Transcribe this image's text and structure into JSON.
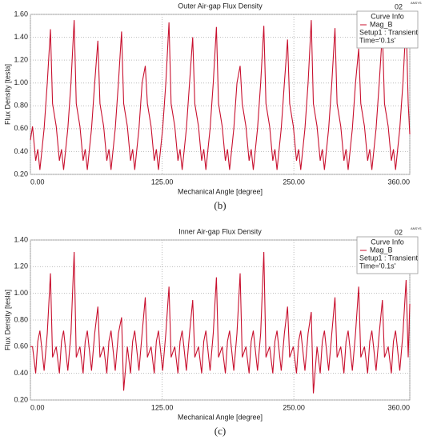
{
  "chart_data": [
    {
      "type": "line",
      "title": "Outer Air-gap Flux Density",
      "xlabel": "Mechanical Angle [degree]",
      "ylabel": "Flux Density [tesla]",
      "caption": "(b)",
      "corner": "02",
      "logo": "ANSYS",
      "legend": {
        "title": "Curve Info",
        "lines": [
          "Setup1 : Transient",
          "Time='0.1s'"
        ]
      },
      "xlim": [
        0,
        360
      ],
      "ylim": [
        0.2,
        1.6
      ],
      "grid": true,
      "xticks": [
        {
          "value": 0,
          "label": "0.00"
        },
        {
          "value": 125,
          "label": "125.00"
        },
        {
          "value": 250,
          "label": "250.00"
        },
        {
          "value": 360,
          "label": "360.00"
        }
      ],
      "yticks": [
        {
          "value": 0.2,
          "label": "0.20"
        },
        {
          "value": 0.4,
          "label": "0.40"
        },
        {
          "value": 0.6,
          "label": "0.60"
        },
        {
          "value": 0.8,
          "label": "0.80"
        },
        {
          "value": 1.0,
          "label": "1.00"
        },
        {
          "value": 1.2,
          "label": "1.20"
        },
        {
          "value": 1.4,
          "label": "1.40"
        },
        {
          "value": 1.6,
          "label": "1.60"
        }
      ],
      "x": [
        0,
        2,
        5,
        7,
        9,
        13,
        16,
        19,
        21,
        24.5,
        27.5,
        29.5,
        31.5,
        35.5,
        38.5,
        41.5,
        43.5,
        47,
        50,
        52,
        54,
        58,
        61,
        64,
        66,
        69.5,
        72.5,
        74.5,
        76.5,
        80.5,
        83.5,
        86.5,
        88.5,
        92,
        95,
        97,
        99,
        103,
        106,
        109,
        111,
        114.5,
        117.5,
        119.5,
        121.5,
        125.5,
        128.5,
        131.5,
        133.5,
        137,
        140,
        142,
        144,
        148,
        151,
        154,
        156,
        159.5,
        162.5,
        164.5,
        166.5,
        170.5,
        173.5,
        176.5,
        178.5,
        182,
        185,
        187,
        189,
        193,
        196,
        199,
        201,
        204.5,
        207.5,
        209.5,
        211.5,
        215.5,
        218.5,
        221.5,
        223.5,
        227,
        230,
        232,
        234,
        238,
        241,
        244,
        246,
        249.5,
        252.5,
        254.5,
        256.5,
        260.5,
        263.5,
        266.5,
        268.5,
        272,
        275,
        277,
        279,
        283,
        286,
        289,
        291,
        294.5,
        297.5,
        299.5,
        301.5,
        305.5,
        308.5,
        311.5,
        313.5,
        317,
        320,
        322,
        324,
        328,
        331,
        334,
        336,
        339.5,
        342.5,
        344.5,
        346.5,
        350.5,
        353.5,
        356.5,
        358.5,
        360
      ],
      "series": [
        {
          "name": "Mag_B",
          "color": "#c8102e",
          "values": [
            0.5,
            0.62,
            0.32,
            0.42,
            0.24,
            0.6,
            1.0,
            1.47,
            0.82,
            0.62,
            0.32,
            0.42,
            0.24,
            0.6,
            1.0,
            1.55,
            0.82,
            0.62,
            0.32,
            0.42,
            0.24,
            0.6,
            1.0,
            1.37,
            0.82,
            0.62,
            0.32,
            0.42,
            0.24,
            0.6,
            1.0,
            1.45,
            0.82,
            0.62,
            0.32,
            0.42,
            0.24,
            0.6,
            1.0,
            1.15,
            0.82,
            0.62,
            0.32,
            0.42,
            0.24,
            0.6,
            1.0,
            1.53,
            0.82,
            0.62,
            0.32,
            0.42,
            0.24,
            0.6,
            1.0,
            1.4,
            0.82,
            0.62,
            0.32,
            0.42,
            0.24,
            0.6,
            1.0,
            1.49,
            0.82,
            0.62,
            0.32,
            0.42,
            0.24,
            0.6,
            1.0,
            1.15,
            0.82,
            0.62,
            0.32,
            0.42,
            0.24,
            0.6,
            1.0,
            1.5,
            0.82,
            0.62,
            0.32,
            0.42,
            0.24,
            0.6,
            1.0,
            1.38,
            0.82,
            0.62,
            0.32,
            0.42,
            0.24,
            0.6,
            1.0,
            1.55,
            0.82,
            0.62,
            0.32,
            0.42,
            0.24,
            0.6,
            1.0,
            1.48,
            0.82,
            0.62,
            0.32,
            0.42,
            0.24,
            0.6,
            1.0,
            1.3,
            0.82,
            0.62,
            0.32,
            0.42,
            0.24,
            0.6,
            1.0,
            1.45,
            0.82,
            0.62,
            0.32,
            0.42,
            0.24,
            0.6,
            1.0,
            1.54,
            0.82,
            0.55
          ]
        }
      ]
    },
    {
      "type": "line",
      "title": "Inner Air-gap Flux Density",
      "xlabel": "Mechanical Angle [degree]",
      "ylabel": "Flux Density [tesla]",
      "caption": "(c)",
      "corner": "02",
      "logo": "ANSYS",
      "legend": {
        "title": "Curve Info",
        "lines": [
          "Setup1 : Transient",
          "Time='0.1s'"
        ]
      },
      "xlim": [
        0,
        360
      ],
      "ylim": [
        0.2,
        1.4
      ],
      "grid": true,
      "xticks": [
        {
          "value": 0,
          "label": "0.00"
        },
        {
          "value": 125,
          "label": "125.00"
        },
        {
          "value": 250,
          "label": "250.00"
        },
        {
          "value": 360,
          "label": "360.00"
        }
      ],
      "yticks": [
        {
          "value": 0.2,
          "label": "0.20"
        },
        {
          "value": 0.4,
          "label": "0.40"
        },
        {
          "value": 0.6,
          "label": "0.60"
        },
        {
          "value": 0.8,
          "label": "0.80"
        },
        {
          "value": 1.0,
          "label": "1.00"
        },
        {
          "value": 1.2,
          "label": "1.20"
        },
        {
          "value": 1.4,
          "label": "1.40"
        }
      ],
      "x": [
        0,
        2,
        5,
        7,
        9,
        13,
        16,
        19,
        21,
        24.5,
        27.5,
        29.5,
        31.5,
        35.5,
        38.5,
        41.5,
        43.5,
        47,
        50,
        52,
        54,
        58,
        61,
        64,
        66,
        69.5,
        72.5,
        74.5,
        76.5,
        80.5,
        83.5,
        86.5,
        88.5,
        92,
        95,
        97,
        99,
        103,
        106,
        109,
        111,
        114.5,
        117.5,
        119.5,
        121.5,
        125.5,
        128.5,
        131.5,
        133.5,
        137,
        140,
        142,
        144,
        148,
        151,
        154,
        156,
        159.5,
        162.5,
        164.5,
        166.5,
        170.5,
        173.5,
        176.5,
        178.5,
        182,
        185,
        187,
        189,
        193,
        196,
        199,
        201,
        204.5,
        207.5,
        209.5,
        211.5,
        215.5,
        218.5,
        221.5,
        223.5,
        227,
        230,
        232,
        234,
        238,
        241,
        244,
        246,
        249.5,
        252.5,
        254.5,
        256.5,
        260.5,
        263.5,
        266.5,
        268.5,
        272,
        275,
        277,
        279,
        283,
        286,
        289,
        291,
        294.5,
        297.5,
        299.5,
        301.5,
        305.5,
        308.5,
        311.5,
        313.5,
        317,
        320,
        322,
        324,
        328,
        331,
        334,
        336,
        339.5,
        342.5,
        344.5,
        346.5,
        350.5,
        353.5,
        356.5,
        358.5,
        360
      ],
      "series": [
        {
          "name": "Mag_B",
          "color": "#c8102e",
          "values": [
            0.6,
            0.6,
            0.4,
            0.64,
            0.72,
            0.42,
            0.7,
            1.15,
            0.52,
            0.6,
            0.4,
            0.64,
            0.72,
            0.42,
            0.7,
            1.31,
            0.52,
            0.6,
            0.4,
            0.64,
            0.72,
            0.42,
            0.7,
            0.9,
            0.52,
            0.6,
            0.4,
            0.64,
            0.72,
            0.42,
            0.7,
            0.82,
            0.27,
            0.6,
            0.4,
            0.64,
            0.72,
            0.42,
            0.7,
            0.97,
            0.52,
            0.6,
            0.4,
            0.64,
            0.72,
            0.42,
            0.7,
            1.05,
            0.52,
            0.6,
            0.4,
            0.64,
            0.72,
            0.42,
            0.7,
            0.95,
            0.52,
            0.6,
            0.4,
            0.64,
            0.72,
            0.42,
            0.7,
            1.12,
            0.52,
            0.6,
            0.4,
            0.64,
            0.72,
            0.42,
            0.7,
            1.15,
            0.52,
            0.6,
            0.4,
            0.64,
            0.72,
            0.42,
            0.7,
            1.31,
            0.52,
            0.6,
            0.4,
            0.64,
            0.72,
            0.42,
            0.7,
            0.9,
            0.52,
            0.6,
            0.4,
            0.64,
            0.72,
            0.42,
            0.7,
            0.86,
            0.25,
            0.6,
            0.4,
            0.64,
            0.72,
            0.42,
            0.7,
            0.97,
            0.52,
            0.6,
            0.4,
            0.64,
            0.72,
            0.42,
            0.7,
            1.05,
            0.52,
            0.6,
            0.4,
            0.64,
            0.72,
            0.42,
            0.7,
            0.95,
            0.52,
            0.6,
            0.4,
            0.64,
            0.72,
            0.42,
            0.7,
            1.1,
            0.52,
            0.92
          ]
        }
      ]
    }
  ]
}
